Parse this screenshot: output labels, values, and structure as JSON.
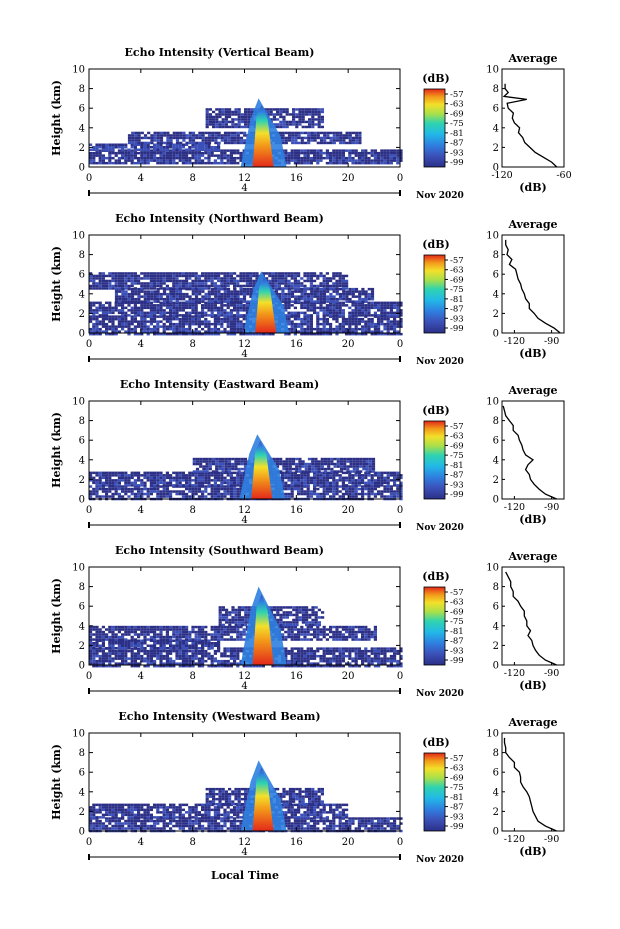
{
  "figure": {
    "xlabel": "Local Time",
    "date_label": "Nov 2020",
    "colorbar_unit": "(dB)",
    "colorbar_ticks": [
      "-57",
      "-63",
      "-69",
      "-75",
      "-81",
      "-87",
      "-93",
      "-99"
    ],
    "avg_title": "Average",
    "avg_unit": "(dB)"
  },
  "chart_data": [
    {
      "type": "heatmap",
      "title": "Echo Intensity (Vertical Beam)",
      "ylabel": "Height (km)",
      "xlim": [
        0,
        24
      ],
      "ylim": [
        0,
        10
      ],
      "xticks": [
        "0",
        "4",
        "8",
        "12",
        "16",
        "20",
        "0"
      ],
      "yticks": [
        "0",
        "2",
        "4",
        "6",
        "8",
        "10"
      ],
      "date_tick": "4",
      "colorbar": {
        "label": "(dB)",
        "range": [
          -99,
          -57
        ]
      },
      "layers": [
        {
          "x0": 0,
          "x1": 24,
          "y0": 0.3,
          "y1": 1.8,
          "level": 0.05
        },
        {
          "x0": 0,
          "x1": 10,
          "y0": 1.8,
          "y1": 2.4,
          "level": 0.1
        },
        {
          "x0": 3,
          "x1": 21,
          "y0": 2.4,
          "y1": 3.6,
          "level": 0.05
        },
        {
          "x0": 9,
          "x1": 18,
          "y0": 4,
          "y1": 6,
          "level": 0.05
        }
      ],
      "storm": {
        "x": 13.4,
        "top": 7,
        "peak": 0.95
      },
      "profile": {
        "xlim": [
          -120,
          -60
        ],
        "xticks": [
          "-120",
          "-60"
        ],
        "ylim": [
          0,
          10
        ],
        "points": [
          [
            -67,
            0
          ],
          [
            -72,
            0.5
          ],
          [
            -80,
            1
          ],
          [
            -88,
            1.5
          ],
          [
            -93,
            2
          ],
          [
            -98,
            2.5
          ],
          [
            -100,
            3
          ],
          [
            -104,
            3.5
          ],
          [
            -103,
            4
          ],
          [
            -108,
            4.5
          ],
          [
            -110,
            5
          ],
          [
            -109,
            5.5
          ],
          [
            -114,
            6
          ],
          [
            -115,
            6.5
          ],
          [
            -96,
            6.9
          ],
          [
            -118,
            7.2
          ],
          [
            -114,
            7.6
          ],
          [
            -117,
            8
          ],
          [
            -117,
            8.5
          ]
        ]
      }
    },
    {
      "type": "heatmap",
      "title": "Echo Intensity (Northward Beam)",
      "ylabel": "Height (km)",
      "xlim": [
        0,
        24
      ],
      "ylim": [
        0,
        10
      ],
      "xticks": [
        "0",
        "4",
        "8",
        "12",
        "16",
        "20",
        "0"
      ],
      "yticks": [
        "0",
        "2",
        "4",
        "6",
        "8",
        "10"
      ],
      "date_tick": "4",
      "colorbar": {
        "label": "(dB)",
        "range": [
          -99,
          -57
        ]
      },
      "layers": [
        {
          "x0": 0,
          "x1": 24,
          "y0": 0,
          "y1": 1.8,
          "level": 0.05
        },
        {
          "x0": 0,
          "x1": 24,
          "y0": 1.8,
          "y1": 3.2,
          "level": 0.05
        },
        {
          "x0": 2,
          "x1": 22,
          "y0": 3.2,
          "y1": 4.6,
          "level": 0.05
        },
        {
          "x0": 0,
          "x1": 20,
          "y0": 4.6,
          "y1": 6.2,
          "level": 0.05
        }
      ],
      "storm": {
        "x": 13.6,
        "top": 6.3,
        "peak": 0.95
      },
      "profile": {
        "xlim": [
          -130,
          -80
        ],
        "xticks": [
          "-120",
          "-90"
        ],
        "ylim": [
          0,
          10
        ],
        "points": [
          [
            -83,
            0
          ],
          [
            -88,
            0.5
          ],
          [
            -95,
            1
          ],
          [
            -101,
            1.5
          ],
          [
            -104,
            2
          ],
          [
            -108,
            2.5
          ],
          [
            -108,
            3
          ],
          [
            -111,
            3.5
          ],
          [
            -112,
            4
          ],
          [
            -114,
            4.5
          ],
          [
            -115,
            5
          ],
          [
            -117,
            5.5
          ],
          [
            -118,
            6
          ],
          [
            -119,
            6.5
          ],
          [
            -124,
            7
          ],
          [
            -122,
            7.5
          ],
          [
            -126,
            8
          ],
          [
            -125,
            8.5
          ],
          [
            -127,
            9
          ],
          [
            -127,
            9.5
          ]
        ]
      }
    },
    {
      "type": "heatmap",
      "title": "Echo Intensity (Eastward Beam)",
      "ylabel": "Height (km)",
      "xlim": [
        0,
        24
      ],
      "ylim": [
        0,
        10
      ],
      "xticks": [
        "0",
        "4",
        "8",
        "12",
        "16",
        "20",
        "0"
      ],
      "yticks": [
        "0",
        "2",
        "4",
        "6",
        "8",
        "10"
      ],
      "date_tick": "4",
      "colorbar": {
        "label": "(dB)",
        "range": [
          -99,
          -57
        ]
      },
      "layers": [
        {
          "x0": 0,
          "x1": 24,
          "y0": 0,
          "y1": 1.4,
          "level": 0.05
        },
        {
          "x0": 0,
          "x1": 24,
          "y0": 1.4,
          "y1": 2.8,
          "level": 0.05
        },
        {
          "x0": 8,
          "x1": 22,
          "y0": 2.8,
          "y1": 4.2,
          "level": 0.05
        }
      ],
      "storm": {
        "x": 13.3,
        "top": 6.6,
        "peak": 0.95
      },
      "profile": {
        "xlim": [
          -130,
          -80
        ],
        "xticks": [
          "-120",
          "-90"
        ],
        "ylim": [
          0,
          10
        ],
        "points": [
          [
            -86,
            0
          ],
          [
            -95,
            0.5
          ],
          [
            -100,
            1
          ],
          [
            -104,
            1.5
          ],
          [
            -107,
            2
          ],
          [
            -108,
            2.5
          ],
          [
            -111,
            3
          ],
          [
            -109,
            3.5
          ],
          [
            -105,
            4
          ],
          [
            -111,
            4.5
          ],
          [
            -113,
            5
          ],
          [
            -114,
            5.5
          ],
          [
            -116,
            6
          ],
          [
            -117,
            6.5
          ],
          [
            -121,
            7
          ],
          [
            -121,
            7.5
          ],
          [
            -124,
            8
          ],
          [
            -127,
            8.5
          ],
          [
            -128,
            9
          ],
          [
            -129,
            9.5
          ]
        ]
      }
    },
    {
      "type": "heatmap",
      "title": "Echo Intensity (Southward Beam)",
      "ylabel": "Height (km)",
      "xlim": [
        0,
        24
      ],
      "ylim": [
        0,
        10
      ],
      "xticks": [
        "0",
        "4",
        "8",
        "12",
        "16",
        "20",
        "0"
      ],
      "yticks": [
        "0",
        "2",
        "4",
        "6",
        "8",
        "10"
      ],
      "date_tick": "4",
      "colorbar": {
        "label": "(dB)",
        "range": [
          -99,
          -57
        ]
      },
      "layers": [
        {
          "x0": 0,
          "x1": 24,
          "y0": 0,
          "y1": 1.8,
          "level": 0.05
        },
        {
          "x0": 0,
          "x1": 10,
          "y0": 1.8,
          "y1": 2.6,
          "level": 0.05
        },
        {
          "x0": 0,
          "x1": 22,
          "y0": 2.6,
          "y1": 4,
          "level": 0.05
        },
        {
          "x0": 10,
          "x1": 18,
          "y0": 4,
          "y1": 6,
          "level": 0.05
        }
      ],
      "storm": {
        "x": 13.4,
        "top": 8,
        "peak": 0.95
      },
      "profile": {
        "xlim": [
          -130,
          -80
        ],
        "xticks": [
          "-120",
          "-90"
        ],
        "ylim": [
          0,
          10
        ],
        "points": [
          [
            -86,
            0
          ],
          [
            -95,
            0.5
          ],
          [
            -100,
            1
          ],
          [
            -103,
            1.5
          ],
          [
            -105,
            2
          ],
          [
            -106,
            2.5
          ],
          [
            -109,
            3
          ],
          [
            -107,
            3.5
          ],
          [
            -110,
            4
          ],
          [
            -110,
            4.5
          ],
          [
            -112,
            5
          ],
          [
            -112,
            5.5
          ],
          [
            -115,
            6
          ],
          [
            -117,
            6.5
          ],
          [
            -121,
            7
          ],
          [
            -121,
            7.5
          ],
          [
            -123,
            8
          ],
          [
            -123,
            8.5
          ],
          [
            -125,
            9
          ],
          [
            -127,
            9.5
          ]
        ]
      }
    },
    {
      "type": "heatmap",
      "title": "Echo Intensity (Westward Beam)",
      "ylabel": "Height (km)",
      "xlim": [
        0,
        24
      ],
      "ylim": [
        0,
        10
      ],
      "xticks": [
        "0",
        "4",
        "8",
        "12",
        "16",
        "20",
        "0"
      ],
      "yticks": [
        "0",
        "2",
        "4",
        "6",
        "8",
        "10"
      ],
      "date_tick": "4",
      "colorbar": {
        "label": "(dB)",
        "range": [
          -99,
          -57
        ]
      },
      "layers": [
        {
          "x0": 0,
          "x1": 24,
          "y0": 0,
          "y1": 1.4,
          "level": 0.05
        },
        {
          "x0": 0,
          "x1": 20,
          "y0": 1.4,
          "y1": 2.8,
          "level": 0.05
        },
        {
          "x0": 9,
          "x1": 18,
          "y0": 2.8,
          "y1": 4.4,
          "level": 0.05
        }
      ],
      "storm": {
        "x": 13.4,
        "top": 7.2,
        "peak": 0.95
      },
      "profile": {
        "xlim": [
          -130,
          -80
        ],
        "xticks": [
          "-120",
          "-90"
        ],
        "ylim": [
          0,
          10
        ],
        "points": [
          [
            -86,
            0
          ],
          [
            -95,
            0.5
          ],
          [
            -101,
            1
          ],
          [
            -103,
            1.5
          ],
          [
            -105,
            2
          ],
          [
            -106,
            2.5
          ],
          [
            -107,
            3
          ],
          [
            -108,
            3.5
          ],
          [
            -110,
            4
          ],
          [
            -113,
            4.5
          ],
          [
            -115,
            5
          ],
          [
            -115,
            5.5
          ],
          [
            -116,
            6
          ],
          [
            -120,
            6.5
          ],
          [
            -120,
            7
          ],
          [
            -124,
            7.5
          ],
          [
            -127,
            8
          ],
          [
            -127,
            8.5
          ],
          [
            -128,
            9
          ],
          [
            -128,
            9.5
          ]
        ]
      }
    }
  ]
}
